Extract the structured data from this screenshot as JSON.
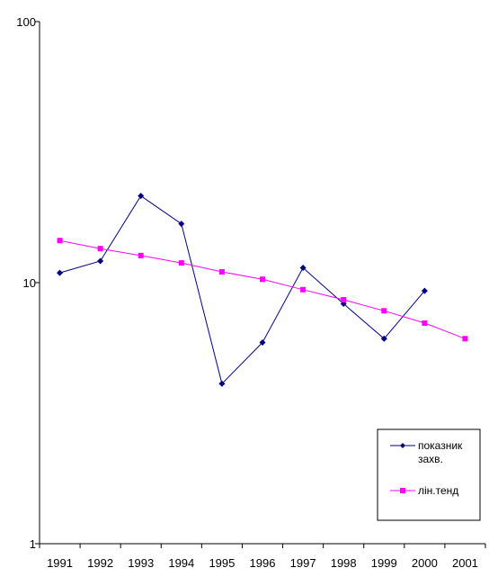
{
  "chart_data": {
    "type": "line",
    "y_scale": "log",
    "ylim": [
      1,
      100
    ],
    "yticks": [
      {
        "value": 1,
        "label": "1"
      },
      {
        "value": 10,
        "label": "10"
      },
      {
        "value": 100,
        "label": "100"
      }
    ],
    "categories": [
      "1991",
      "1992",
      "1993",
      "1994",
      "1995",
      "1996",
      "1997",
      "1998",
      "1999",
      "2000",
      "2001"
    ],
    "grid": false,
    "legend_position": "bottom-right",
    "series": [
      {
        "name": "показник захв.",
        "color": "#000080",
        "marker": "diamond",
        "values": [
          10.9,
          12.1,
          21.5,
          16.8,
          4.1,
          5.9,
          11.4,
          8.3,
          6.1,
          9.3,
          null
        ]
      },
      {
        "name": "лін.тенд",
        "color": "#ff00ff",
        "marker": "square",
        "values": [
          14.5,
          13.5,
          12.7,
          11.9,
          11.0,
          10.3,
          9.4,
          8.6,
          7.8,
          7.0,
          6.1
        ]
      }
    ],
    "legend": {
      "series0_lines": [
        "показник",
        "захв."
      ],
      "series1_lines": [
        "лін.тенд"
      ]
    }
  }
}
